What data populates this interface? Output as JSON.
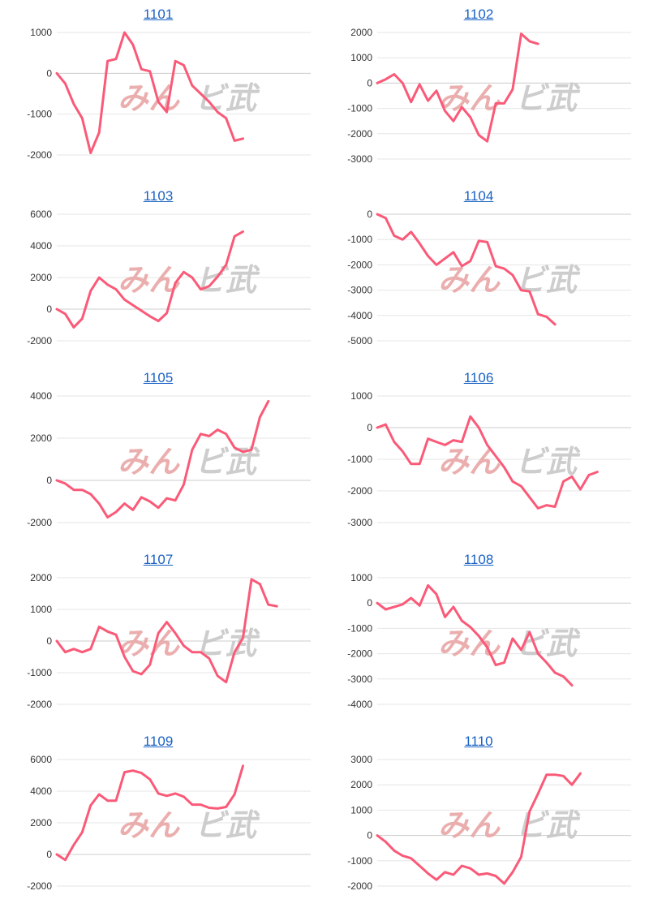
{
  "colors": {
    "line": "#fa5a78",
    "grid": "#e6e6e6",
    "zero": "#cccccc",
    "title": "#1a62c4",
    "watermark_left": "#e9a6a6",
    "watermark_right": "#c8c8c8"
  },
  "watermark": {
    "left": "みん",
    "right": "ビ武"
  },
  "chart_data": [
    {
      "type": "line",
      "title": "1101",
      "yticks": [
        1000,
        0,
        -1000,
        -2000
      ],
      "ylim": [
        -2100,
        1000
      ],
      "values": [
        0,
        -250,
        -750,
        -1100,
        -1950,
        -1450,
        300,
        350,
        1000,
        700,
        100,
        50,
        -700,
        -950,
        300,
        200,
        -300,
        -500,
        -700,
        -950,
        -1100,
        -1650,
        -1600
      ]
    },
    {
      "type": "line",
      "title": "1102",
      "yticks": [
        2000,
        1000,
        0,
        -1000,
        -2000,
        -3000
      ],
      "ylim": [
        -3000,
        2000
      ],
      "values": [
        0,
        150,
        350,
        0,
        -750,
        -50,
        -700,
        -300,
        -1100,
        -1500,
        -950,
        -1350,
        -2050,
        -2300,
        -800,
        -800,
        -250,
        1950,
        1650,
        1550
      ]
    },
    {
      "type": "line",
      "title": "1103",
      "yticks": [
        6000,
        4000,
        2000,
        0,
        -2000
      ],
      "ylim": [
        -2000,
        6000
      ],
      "values": [
        0,
        -300,
        -1150,
        -600,
        1150,
        2000,
        1550,
        1250,
        600,
        250,
        -100,
        -450,
        -750,
        -250,
        1650,
        2350,
        2000,
        1250,
        1450,
        2050,
        2800,
        4600,
        4900
      ]
    },
    {
      "type": "line",
      "title": "1104",
      "yticks": [
        0,
        -1000,
        -2000,
        -3000,
        -4000,
        -5000
      ],
      "ylim": [
        -5000,
        0
      ],
      "values": [
        0,
        -150,
        -850,
        -1000,
        -700,
        -1150,
        -1650,
        -2000,
        -1750,
        -1500,
        -2050,
        -1850,
        -1050,
        -1100,
        -2050,
        -2150,
        -2400,
        -3000,
        -3050,
        -3950,
        -4050,
        -4350
      ]
    },
    {
      "type": "line",
      "title": "1105",
      "yticks": [
        4000,
        2000,
        0,
        -2000
      ],
      "ylim": [
        -2000,
        4000
      ],
      "values": [
        0,
        -150,
        -450,
        -450,
        -650,
        -1100,
        -1750,
        -1500,
        -1100,
        -1400,
        -800,
        -1000,
        -1300,
        -850,
        -950,
        -200,
        1450,
        2200,
        2100,
        2400,
        2200,
        1550,
        1350,
        1450,
        3000,
        3750
      ]
    },
    {
      "type": "line",
      "title": "1106",
      "yticks": [
        1000,
        0,
        -1000,
        -2000,
        -3000
      ],
      "ylim": [
        -3000,
        1000
      ],
      "values": [
        0,
        100,
        -450,
        -750,
        -1150,
        -1150,
        -350,
        -450,
        -550,
        -400,
        -450,
        350,
        0,
        -550,
        -900,
        -1250,
        -1700,
        -1850,
        -2200,
        -2550,
        -2450,
        -2500,
        -1700,
        -1550,
        -1950,
        -1500,
        -1400
      ]
    },
    {
      "type": "line",
      "title": "1107",
      "yticks": [
        2000,
        1000,
        0,
        -1000,
        -2000
      ],
      "ylim": [
        -2000,
        2000
      ],
      "values": [
        0,
        -350,
        -250,
        -350,
        -250,
        450,
        300,
        200,
        -500,
        -950,
        -1050,
        -750,
        250,
        600,
        250,
        -150,
        -350,
        -350,
        -550,
        -1100,
        -1300,
        -350,
        100,
        1950,
        1800,
        1150,
        1100
      ]
    },
    {
      "type": "line",
      "title": "1108",
      "yticks": [
        1000,
        0,
        -1000,
        -2000,
        -3000,
        -4000
      ],
      "ylim": [
        -4000,
        1000
      ],
      "values": [
        0,
        -250,
        -150,
        -50,
        200,
        -100,
        700,
        350,
        -550,
        -150,
        -700,
        -950,
        -1300,
        -1750,
        -2450,
        -2350,
        -1400,
        -1850,
        -1150,
        -2000,
        -2350,
        -2750,
        -2900,
        -3250
      ]
    },
    {
      "type": "line",
      "title": "1109",
      "yticks": [
        6000,
        4000,
        2000,
        0,
        -2000
      ],
      "ylim": [
        -2000,
        6000
      ],
      "values": [
        0,
        -350,
        600,
        1400,
        3100,
        3800,
        3400,
        3400,
        5200,
        5300,
        5150,
        4750,
        3850,
        3700,
        3850,
        3650,
        3150,
        3150,
        2950,
        2900,
        3000,
        3800,
        5600
      ]
    },
    {
      "type": "line",
      "title": "1110",
      "yticks": [
        3000,
        2000,
        1000,
        0,
        -1000,
        -2000
      ],
      "ylim": [
        -2000,
        3000
      ],
      "values": [
        0,
        -250,
        -600,
        -800,
        -900,
        -1200,
        -1500,
        -1750,
        -1450,
        -1550,
        -1200,
        -1300,
        -1550,
        -1500,
        -1600,
        -1900,
        -1450,
        -850,
        950,
        1650,
        2400,
        2400,
        2350,
        2000,
        2450
      ]
    }
  ]
}
